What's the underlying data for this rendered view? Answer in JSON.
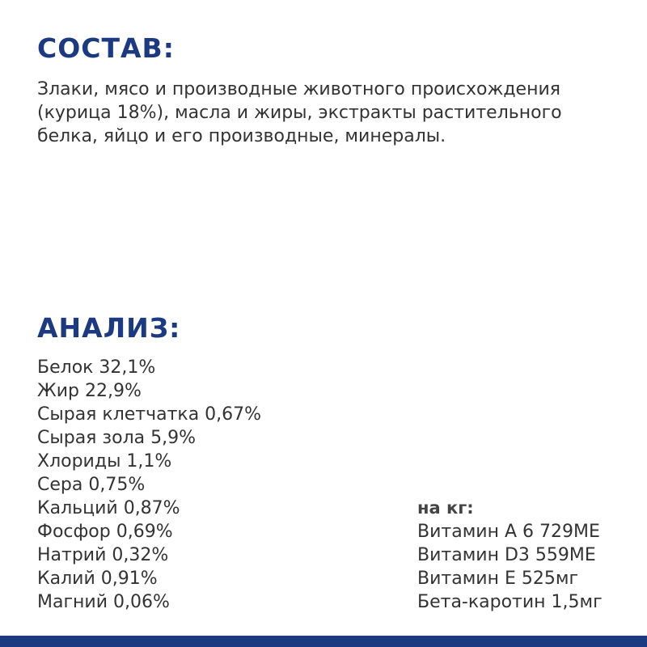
{
  "composition": {
    "title": "СОСТАВ:",
    "lines": [
      "Злаки, мясо и производные животного происхождения",
      "(курица 18%), масла и жиры, экстракты растительного",
      "белка, яйцо и его производные, минералы."
    ]
  },
  "analysis": {
    "title": "АНАЛИЗ:",
    "items": [
      "Белок 32,1%",
      "Жир 22,9%",
      "Сырая клетчатка 0,67%",
      "Сырая зола 5,9%",
      "Хлориды 1,1%",
      "Сера 0,75%",
      "Кальций 0,87%",
      "Фосфор 0,69%",
      "Натрий 0,32%",
      "Калий 0,91%",
      "Магний 0,06%"
    ]
  },
  "per_kg": {
    "title": "на кг:",
    "items": [
      "Витамин А 6 729МЕ",
      "Витамин D3 559МЕ",
      "Витамин Е 525мг",
      "Бета-каротин 1,5мг"
    ]
  }
}
